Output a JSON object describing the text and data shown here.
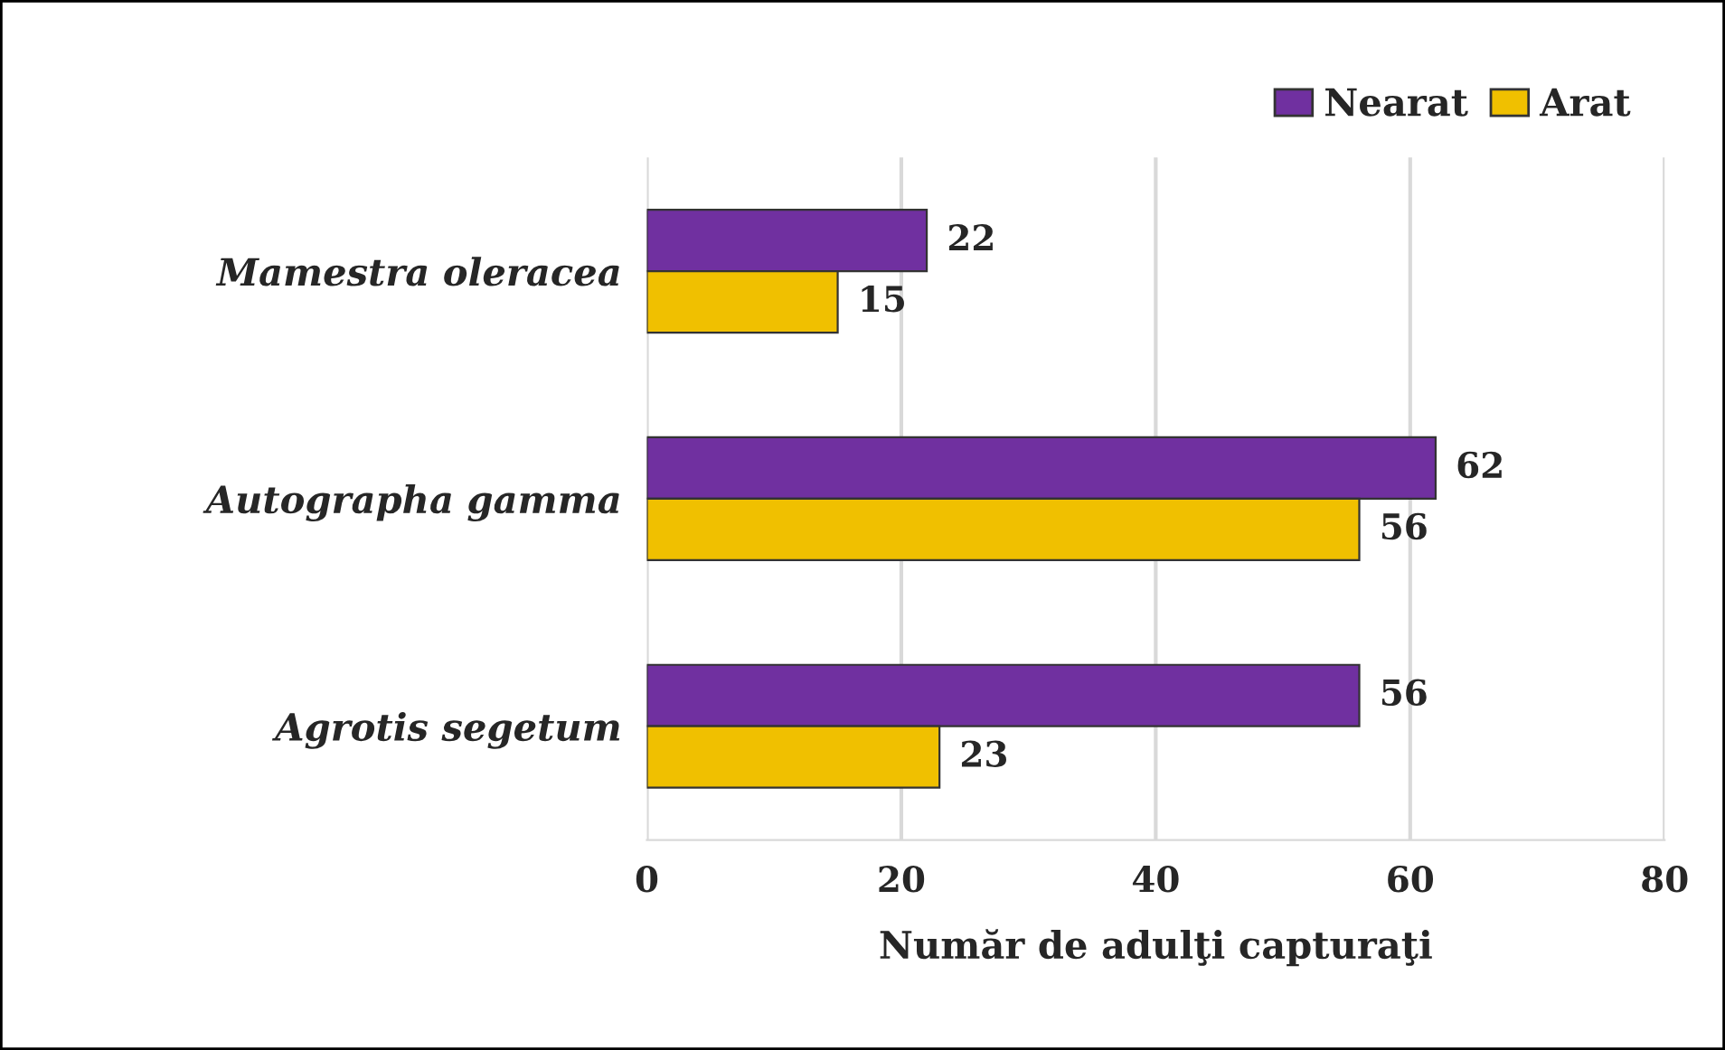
{
  "chart_data": {
    "type": "bar",
    "orientation": "horizontal",
    "xlabel": "Număr de adulţi capturaţi",
    "categories": [
      "Mamestra oleracea",
      "Autographa gamma",
      "Agrotis segetum"
    ],
    "series": [
      {
        "name": "Nearat",
        "color": "#7030a0",
        "values": [
          22,
          62,
          56
        ]
      },
      {
        "name": "Arat",
        "color": "#f0c000",
        "values": [
          15,
          56,
          23
        ]
      }
    ],
    "xlim": [
      0,
      80
    ],
    "xticks": [
      0,
      20,
      40,
      60,
      80
    ],
    "grid": "x",
    "legend": "top right",
    "data_labels": true
  }
}
